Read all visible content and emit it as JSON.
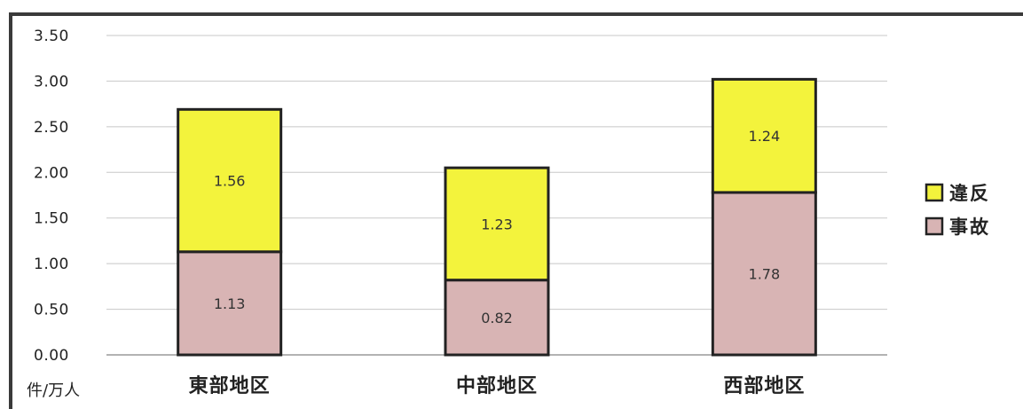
{
  "chart_data": {
    "type": "bar",
    "stacked": true,
    "categories": [
      "東部地区",
      "中部地区",
      "西部地区"
    ],
    "series": [
      {
        "name": "事故",
        "values": [
          1.13,
          0.82,
          1.78
        ],
        "color": "#d8b4b4"
      },
      {
        "name": "違反",
        "values": [
          1.56,
          1.23,
          1.24
        ],
        "color": "#f3f33c"
      }
    ],
    "ylim": [
      0,
      3.5
    ],
    "yticks": [
      "0.00",
      "0.50",
      "1.00",
      "1.50",
      "2.00",
      "2.50",
      "3.00",
      "3.50"
    ],
    "ylabel": "件/万人",
    "grid": true,
    "legend_position": "right"
  }
}
